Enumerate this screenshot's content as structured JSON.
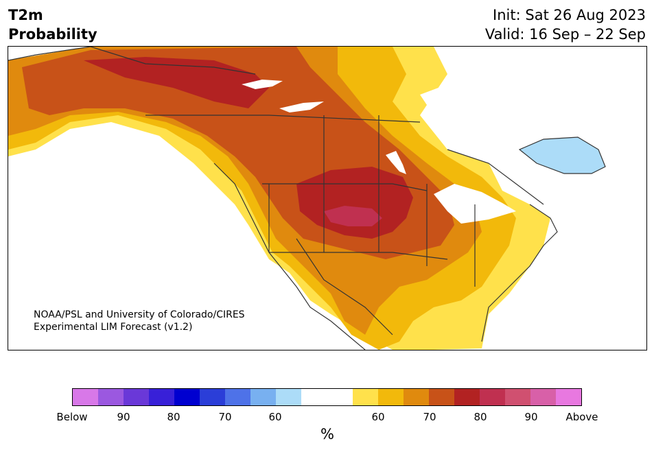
{
  "title": {
    "line1": "T2m",
    "line2": "Probability",
    "init": "Init: Sat 26 Aug 2023",
    "valid": "Valid: 16 Sep – 22 Sep"
  },
  "credit": {
    "line1": "NOAA/PSL and University of Colorado/CIRES",
    "line2": "Experimental LIM Forecast (v1.2)"
  },
  "map": {
    "region": "North America",
    "variable": "2m temperature probability",
    "colors": {
      "above_60": "#ffe14b",
      "above_65": "#f2b90b",
      "above_70": "#e08a0e",
      "above_75": "#c85218",
      "above_80": "#b22222",
      "above_85": "#c03050",
      "below_60": "#acdcf8",
      "land_outline": "#333333"
    }
  },
  "colorbar": {
    "colors": [
      "#d878e8",
      "#9b58e0",
      "#6a38d8",
      "#3820d8",
      "#0000d0",
      "#2b3ed8",
      "#4e72e8",
      "#78b0f0",
      "#acdcf8",
      "#ffffff",
      "#ffe14b",
      "#f2b90b",
      "#e08a0e",
      "#c85218",
      "#b22222",
      "#c03050",
      "#d05070",
      "#d860a8",
      "#e878e0"
    ],
    "ticks": [
      "Below",
      "90",
      "80",
      "70",
      "60",
      "60",
      "70",
      "80",
      "90",
      "Above"
    ],
    "unit": "%"
  }
}
